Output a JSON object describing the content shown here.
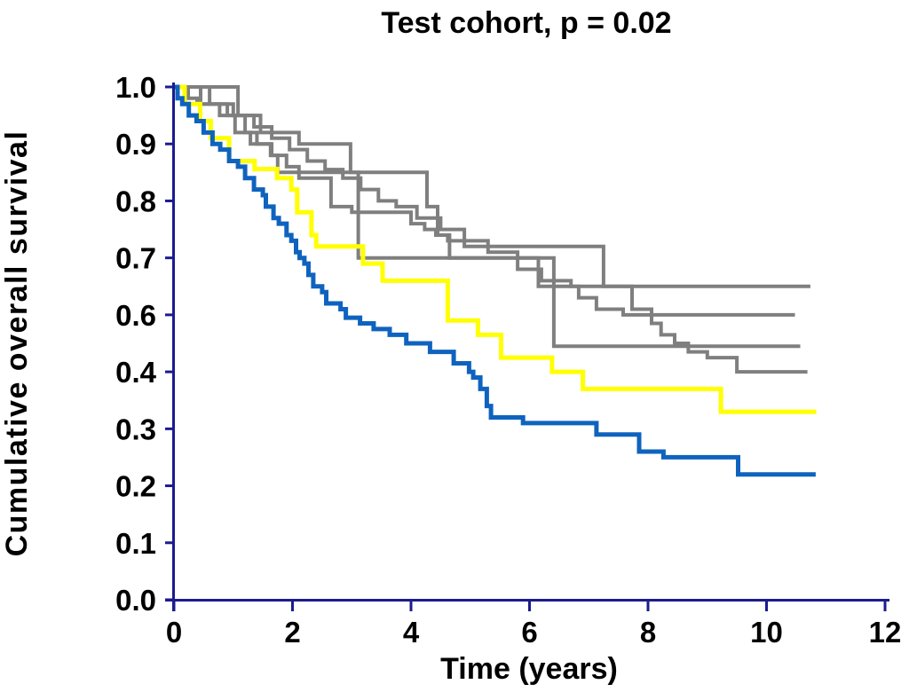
{
  "figure": {
    "title": "Test cohort, p = 0.02",
    "xlabel": "Time (years)",
    "ylabel": "Cumulative overall survival"
  },
  "chart_data": {
    "type": "line",
    "subtype": "kaplan-meier-step",
    "title": "Test cohort, p = 0.02",
    "xlabel": "Time (years)",
    "ylabel": "Cumulative overall survival",
    "xlim": [
      0,
      12
    ],
    "x_ticks": [
      0,
      2,
      4,
      6,
      8,
      10,
      12
    ],
    "y_tick_labels": [
      "1.0",
      "0.9",
      "0.8",
      "0.7",
      "0.6",
      "0.4",
      "0.3",
      "0.2",
      "0.1",
      "0.0"
    ],
    "grid": false,
    "legend": "none",
    "colors": {
      "axis": "#1b1b8f",
      "text": "#000000",
      "gray": "#7f7f7f",
      "yellow": "#ffff00",
      "blue": "#0f63be"
    },
    "series": [
      {
        "name": "gray-curve-1",
        "color_key": "gray",
        "stroke_width": 4,
        "end_t": 10.74,
        "drops": [
          [
            1.08,
            0.95
          ],
          [
            1.46,
            0.92
          ],
          [
            2.11,
            0.9
          ],
          [
            2.98,
            0.85
          ],
          [
            4.27,
            0.79
          ],
          [
            4.45,
            0.74
          ],
          [
            4.62,
            0.73
          ],
          [
            4.9,
            0.72
          ],
          [
            7.25,
            0.65
          ]
        ]
      },
      {
        "name": "gray-curve-2",
        "color_key": "gray",
        "stroke_width": 4,
        "end_t": 10.48,
        "drops": [
          [
            0.24,
            0.98
          ],
          [
            0.39,
            0.97
          ],
          [
            0.77,
            0.95
          ],
          [
            1.03,
            0.92
          ],
          [
            1.29,
            0.9
          ],
          [
            1.65,
            0.88
          ],
          [
            1.75,
            0.85
          ],
          [
            3.11,
            0.7
          ],
          [
            6.15,
            0.65
          ],
          [
            6.83,
            0.63
          ],
          [
            7.13,
            0.61
          ],
          [
            7.58,
            0.6
          ]
        ]
      },
      {
        "name": "gray-curve-3",
        "color_key": "gray",
        "stroke_width": 4,
        "end_t": 10.57,
        "drops": [
          [
            0.45,
            0.97
          ],
          [
            0.9,
            0.95
          ],
          [
            1.2,
            0.92
          ],
          [
            1.4,
            0.9
          ],
          [
            1.63,
            0.88
          ],
          [
            1.9,
            0.86
          ],
          [
            2.11,
            0.84
          ],
          [
            2.65,
            0.79
          ],
          [
            3.0,
            0.78
          ],
          [
            4.0,
            0.76
          ],
          [
            4.23,
            0.75
          ],
          [
            4.42,
            0.74
          ],
          [
            4.65,
            0.7
          ],
          [
            6.41,
            0.49
          ]
        ]
      },
      {
        "name": "gray-curve-4",
        "color_key": "gray",
        "stroke_width": 4,
        "end_t": 10.69,
        "drops": [
          [
            0.6,
            0.97
          ],
          [
            1.0,
            0.95
          ],
          [
            1.35,
            0.93
          ],
          [
            1.65,
            0.91
          ],
          [
            1.95,
            0.89
          ],
          [
            2.25,
            0.87
          ],
          [
            2.55,
            0.855
          ],
          [
            2.85,
            0.84
          ],
          [
            3.15,
            0.82
          ],
          [
            3.45,
            0.8
          ],
          [
            3.75,
            0.79
          ],
          [
            4.1,
            0.77
          ],
          [
            4.5,
            0.75
          ],
          [
            4.9,
            0.73
          ],
          [
            5.3,
            0.71
          ],
          [
            5.8,
            0.68
          ],
          [
            6.2,
            0.66
          ],
          [
            6.7,
            0.65
          ],
          [
            7.73,
            0.61
          ],
          [
            8.06,
            0.57
          ],
          [
            8.22,
            0.53
          ],
          [
            8.45,
            0.5
          ],
          [
            8.68,
            0.47
          ],
          [
            9.0,
            0.45
          ],
          [
            9.5,
            0.4
          ]
        ]
      },
      {
        "name": "yellow-curve",
        "color_key": "yellow",
        "stroke_width": 5,
        "end_t": 10.84,
        "drops": [
          [
            0.18,
            0.97
          ],
          [
            0.44,
            0.94
          ],
          [
            0.62,
            0.91
          ],
          [
            0.93,
            0.87
          ],
          [
            1.36,
            0.856
          ],
          [
            1.74,
            0.84
          ],
          [
            1.98,
            0.82
          ],
          [
            2.08,
            0.78
          ],
          [
            2.32,
            0.74
          ],
          [
            2.4,
            0.72
          ],
          [
            3.19,
            0.69
          ],
          [
            3.52,
            0.66
          ],
          [
            4.62,
            0.58
          ],
          [
            5.13,
            0.53
          ],
          [
            5.52,
            0.45
          ],
          [
            6.38,
            0.4
          ],
          [
            6.9,
            0.37
          ],
          [
            9.23,
            0.33
          ]
        ]
      },
      {
        "name": "blue-curve",
        "color_key": "blue",
        "stroke_width": 5,
        "end_t": 10.83,
        "drops": [
          [
            0.06,
            0.98
          ],
          [
            0.14,
            0.97
          ],
          [
            0.25,
            0.95
          ],
          [
            0.38,
            0.94
          ],
          [
            0.5,
            0.92
          ],
          [
            0.65,
            0.9
          ],
          [
            0.78,
            0.89
          ],
          [
            0.93,
            0.87
          ],
          [
            1.08,
            0.86
          ],
          [
            1.2,
            0.84
          ],
          [
            1.35,
            0.82
          ],
          [
            1.5,
            0.81
          ],
          [
            1.55,
            0.79
          ],
          [
            1.68,
            0.77
          ],
          [
            1.77,
            0.76
          ],
          [
            1.9,
            0.74
          ],
          [
            1.98,
            0.73
          ],
          [
            2.06,
            0.71
          ],
          [
            2.12,
            0.7
          ],
          [
            2.2,
            0.69
          ],
          [
            2.27,
            0.67
          ],
          [
            2.35,
            0.65
          ],
          [
            2.5,
            0.64
          ],
          [
            2.57,
            0.62
          ],
          [
            2.81,
            0.61
          ],
          [
            2.9,
            0.59
          ],
          [
            3.14,
            0.57
          ],
          [
            3.37,
            0.55
          ],
          [
            3.64,
            0.53
          ],
          [
            3.92,
            0.5
          ],
          [
            4.32,
            0.47
          ],
          [
            4.72,
            0.43
          ],
          [
            4.98,
            0.4
          ],
          [
            5.05,
            0.39
          ],
          [
            5.17,
            0.37
          ],
          [
            5.28,
            0.34
          ],
          [
            5.35,
            0.32
          ],
          [
            5.89,
            0.31
          ],
          [
            7.13,
            0.29
          ],
          [
            7.85,
            0.26
          ],
          [
            8.26,
            0.25
          ],
          [
            9.52,
            0.22
          ]
        ]
      }
    ]
  }
}
